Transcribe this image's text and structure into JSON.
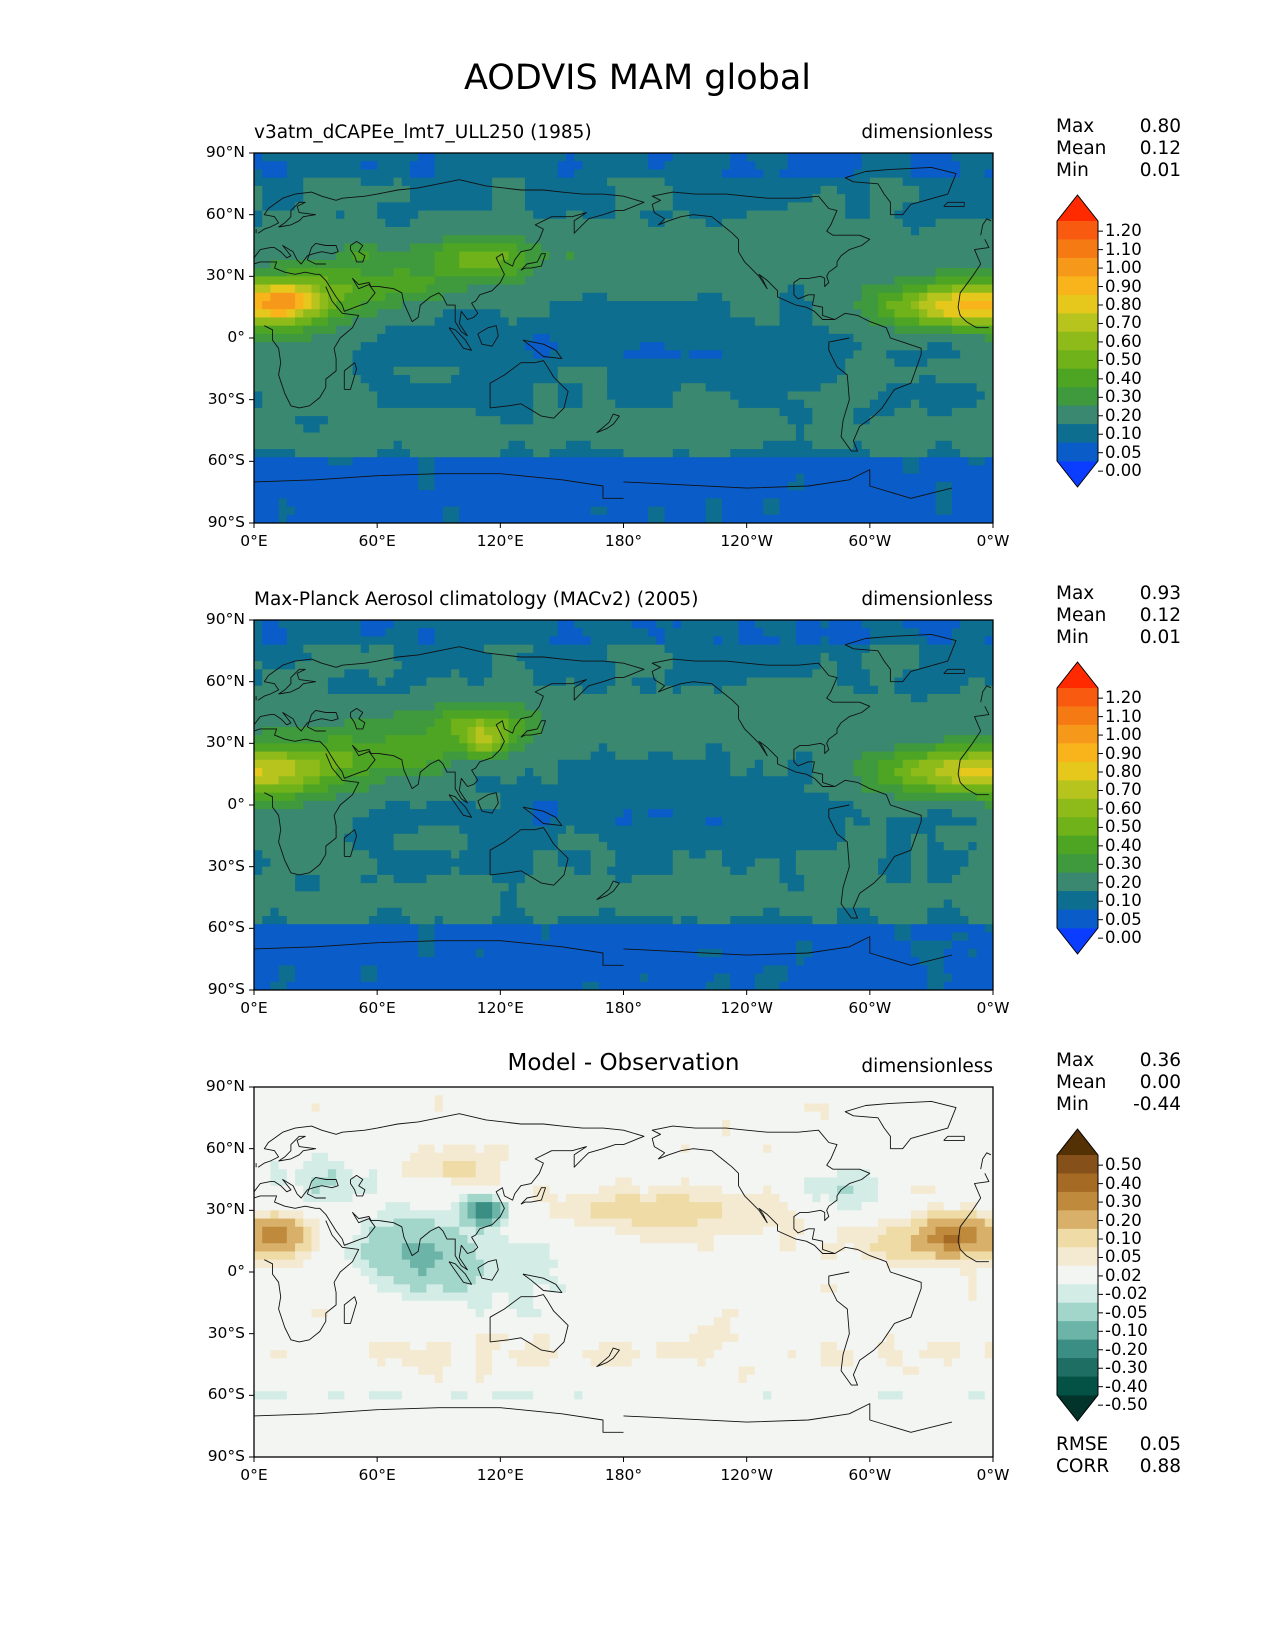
{
  "title": "AODVIS MAM global",
  "colors": {
    "seq_levels": [
      0.0,
      0.05,
      0.1,
      0.2,
      0.3,
      0.4,
      0.5,
      0.6,
      0.7,
      0.8,
      0.9,
      1.0,
      1.1,
      1.2
    ],
    "seq_colors": [
      "#0a3dff",
      "#0a5cc8",
      "#0e6e90",
      "#3a8870",
      "#3e9a3c",
      "#4ea524",
      "#6fb21a",
      "#8fbb1a",
      "#b8c41e",
      "#e6c81c",
      "#f8b41a",
      "#f6991a",
      "#f67a14",
      "#f85a10",
      "#ff2a00"
    ],
    "diff_levels": [
      -0.5,
      -0.4,
      -0.3,
      -0.2,
      -0.1,
      -0.05,
      -0.02,
      0.02,
      0.05,
      0.1,
      0.2,
      0.3,
      0.4,
      0.5
    ],
    "diff_colors": [
      "#02342c",
      "#045245",
      "#1e6e64",
      "#3a8e84",
      "#6cb4a8",
      "#a2d6ca",
      "#d4ece6",
      "#f3f5f3",
      "#f4ead2",
      "#eedba6",
      "#d8b06a",
      "#c08a3c",
      "#a56a24",
      "#85501a",
      "#543005"
    ]
  },
  "chart_data": [
    {
      "type": "heatmap",
      "projection": "plate-carree",
      "title": "v3atm_dCAPEe_lmt7_ULL250 (1985)",
      "units": "dimensionless",
      "stats": [
        {
          "label": "Max",
          "value": "0.80"
        },
        {
          "label": "Mean",
          "value": "0.12"
        },
        {
          "label": "Min",
          "value": "0.01"
        }
      ],
      "x_ticks": [
        "0°E",
        "60°E",
        "120°E",
        "180°",
        "120°W",
        "60°W",
        "0°W"
      ],
      "y_ticks": [
        "90°N",
        "60°N",
        "30°N",
        "0°",
        "30°S",
        "60°S",
        "90°S"
      ],
      "colorbar": {
        "labels": [
          "1.20",
          "1.10",
          "1.00",
          "0.90",
          "0.80",
          "0.70",
          "0.60",
          "0.50",
          "0.40",
          "0.30",
          "0.20",
          "0.10",
          "0.05",
          "0.00"
        ],
        "extend": "both"
      }
    },
    {
      "type": "heatmap",
      "projection": "plate-carree",
      "title": "Max-Planck Aerosol climatology (MACv2) (2005)",
      "units": "dimensionless",
      "stats": [
        {
          "label": "Max",
          "value": "0.93"
        },
        {
          "label": "Mean",
          "value": "0.12"
        },
        {
          "label": "Min",
          "value": "0.01"
        }
      ],
      "x_ticks": [
        "0°E",
        "60°E",
        "120°E",
        "180°",
        "120°W",
        "60°W",
        "0°W"
      ],
      "y_ticks": [
        "90°N",
        "60°N",
        "30°N",
        "0°",
        "30°S",
        "60°S",
        "90°S"
      ],
      "colorbar": {
        "labels": [
          "1.20",
          "1.10",
          "1.00",
          "0.90",
          "0.80",
          "0.70",
          "0.60",
          "0.50",
          "0.40",
          "0.30",
          "0.20",
          "0.10",
          "0.05",
          "0.00"
        ],
        "extend": "both"
      }
    },
    {
      "type": "heatmap",
      "projection": "plate-carree",
      "title": "Model - Observation",
      "units": "dimensionless",
      "stats": [
        {
          "label": "Max",
          "value": "0.36"
        },
        {
          "label": "Mean",
          "value": "0.00"
        },
        {
          "label": "Min",
          "value": "-0.44"
        }
      ],
      "extra_stats": [
        {
          "label": "RMSE",
          "value": "0.05"
        },
        {
          "label": "CORR",
          "value": "0.88"
        }
      ],
      "x_ticks": [
        "0°E",
        "60°E",
        "120°E",
        "180°",
        "120°W",
        "60°W",
        "0°W"
      ],
      "y_ticks": [
        "90°N",
        "60°N",
        "30°N",
        "0°",
        "30°S",
        "60°S",
        "90°S"
      ],
      "colorbar": {
        "labels": [
          "0.50",
          "0.40",
          "0.30",
          "0.20",
          "0.10",
          "0.05",
          "0.02",
          "-0.02",
          "-0.05",
          "-0.10",
          "-0.20",
          "-0.30",
          "-0.40",
          "-0.50"
        ],
        "extend": "both"
      }
    }
  ]
}
